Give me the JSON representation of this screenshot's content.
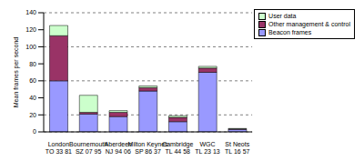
{
  "chart_data": {
    "type": "bar",
    "stacked": true,
    "grid": true,
    "legend": "top right",
    "y_label": "Mean frames per second",
    "categories": [
      "London\nTQ 33 81",
      "Bournemouth\nSZ 07 95",
      "Aberdeen\nNJ 94 06",
      "Milton Keynes\nSP 86 37",
      "Cambridge\nTL 44 58",
      "WGC\nTL 23 13",
      "St Neots\nTL 16 57"
    ],
    "ylim": [
      0,
      140
    ],
    "yticks": [
      0,
      20,
      40,
      60,
      80,
      100,
      120,
      140
    ],
    "series": [
      {
        "name": "Beacon frames",
        "color": "#9999ff",
        "values": [
          60,
          21,
          18,
          48,
          12,
          70,
          3
        ]
      },
      {
        "name": "Other management & control",
        "color": "#993366",
        "values": [
          53,
          2,
          5,
          4,
          5,
          5,
          0.5
        ]
      },
      {
        "name": "User data",
        "color": "#ccffcc",
        "values": [
          12,
          20,
          2,
          2,
          2,
          2,
          0.5
        ]
      }
    ]
  }
}
